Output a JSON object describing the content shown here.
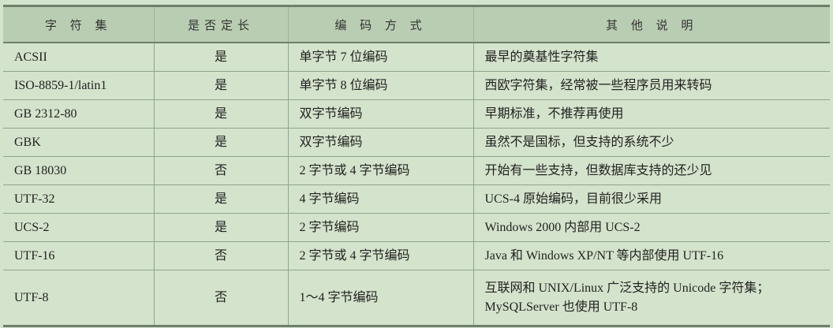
{
  "headers": [
    "字 符 集",
    "是否定长",
    "编 码 方 式",
    "其 他 说 明"
  ],
  "rows": [
    [
      "ACSII",
      "是",
      "单字节 7 位编码",
      "最早的奠基性字符集"
    ],
    [
      "ISO-8859-1/latin1",
      "是",
      "单字节 8 位编码",
      "西欧字符集，经常被一些程序员用来转码"
    ],
    [
      "GB 2312-80",
      "是",
      "双字节编码",
      "早期标准，不推荐再使用"
    ],
    [
      "GBK",
      "是",
      "双字节编码",
      "虽然不是国标，但支持的系统不少"
    ],
    [
      "GB 18030",
      "否",
      "2 字节或 4 字节编码",
      "开始有一些支持，但数据库支持的还少见"
    ],
    [
      "UTF-32",
      "是",
      "4 字节编码",
      "UCS-4 原始编码，目前很少采用"
    ],
    [
      "UCS-2",
      "是",
      "2 字节编码",
      "Windows 2000 内部用 UCS-2"
    ],
    [
      "UTF-16",
      "否",
      "2 字节或 4 字节编码",
      "Java 和 Windows XP/NT 等内部使用 UTF-16"
    ],
    [
      "UTF-8",
      "否",
      "1～4 字节编码",
      "互联网和 UNIX/Linux 广泛支持的 Unicode 字符集；MySQLServer 也使用 UTF-8"
    ]
  ],
  "colors": {
    "background": "#d4e3cc",
    "header": "#b9cdb2"
  }
}
